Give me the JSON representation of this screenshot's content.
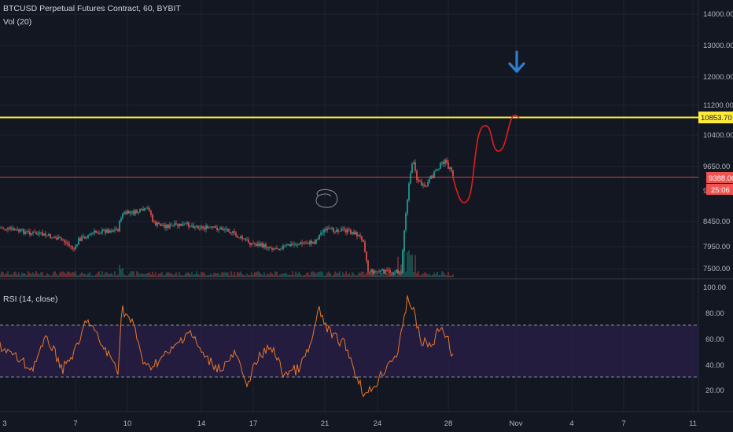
{
  "header": {
    "title": "BTCUSD Perpetual Futures Contract, 60, BYBIT",
    "volume_label": "Vol (20)",
    "rsi_label": "RSI (14, close)"
  },
  "colors": {
    "background": "#131722",
    "grid": "#1e2330",
    "up_candle": "#26a69a",
    "down_candle": "#ef5350",
    "resistance_line": "#ffeb3b",
    "price_line": "#ef5350",
    "projection": "#e51c1c",
    "arrow": "#2d7fd1",
    "rsi_line": "#e8782a",
    "rsi_band": "#2a1f4a"
  },
  "price_axis": {
    "ticks": [
      "14000.00",
      "13000.00",
      "12000.00",
      "11200.00",
      "10400.00",
      "9650.00",
      "8450.00",
      "7950.00",
      "7500.00"
    ],
    "resistance_label": "10853.70",
    "current_price_label": "9388.00",
    "countdown_label": "25:06",
    "partial_label": "9"
  },
  "rsi_axis": {
    "ticks": [
      "100.00",
      "80.00",
      "60.00",
      "40.00",
      "20.00"
    ]
  },
  "time_axis": {
    "ticks": [
      "3",
      "7",
      "10",
      "14",
      "17",
      "21",
      "24",
      "28",
      "Nov",
      "4",
      "7",
      "11"
    ]
  },
  "annotations": {
    "arrow_icon": "arrow-down-icon",
    "circle_icon": "scribble-circle"
  }
}
